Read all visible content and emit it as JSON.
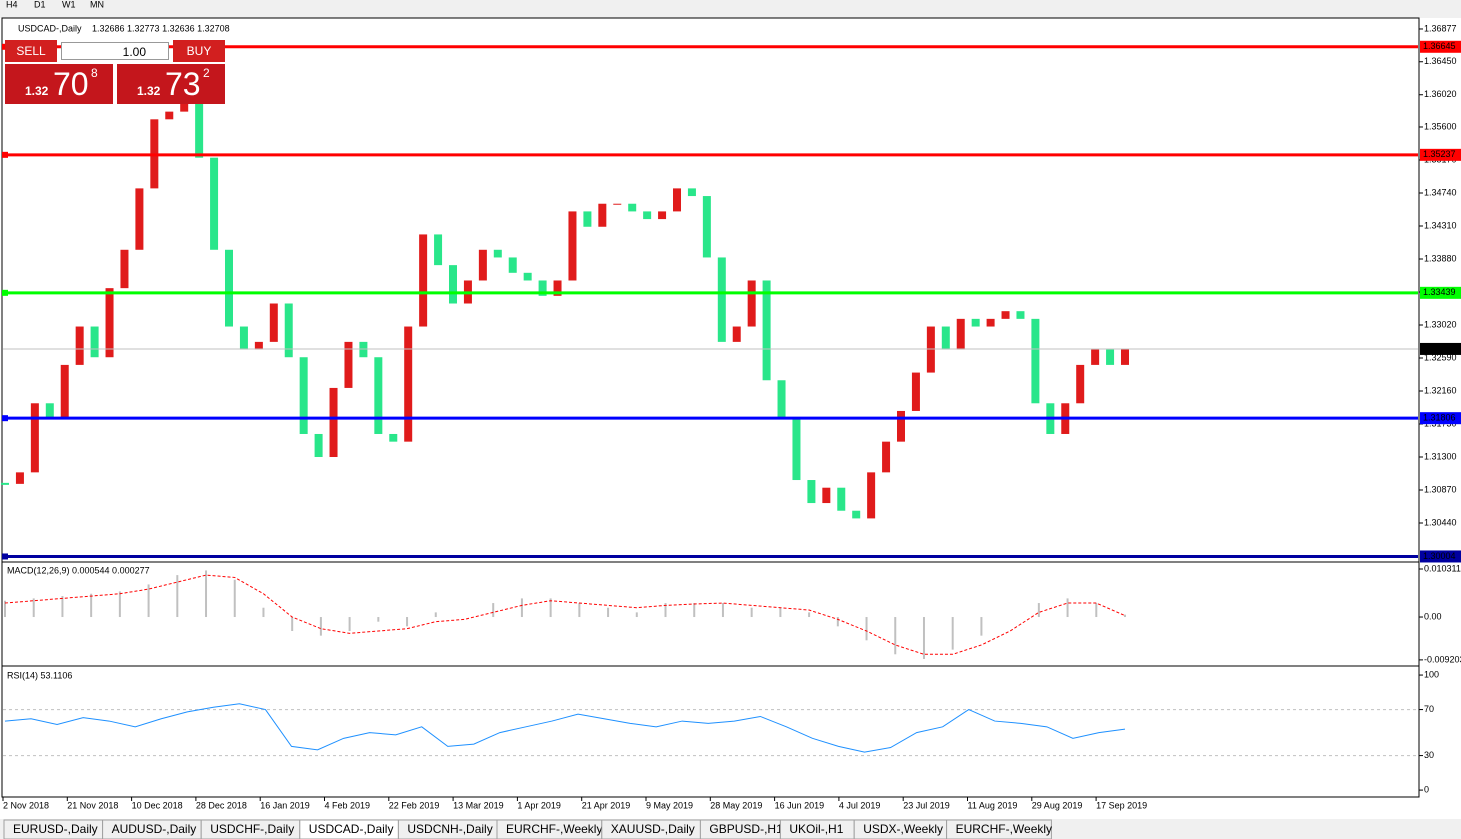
{
  "timeframes": [
    "H4",
    "D1",
    "W1",
    "MN"
  ],
  "trade_panel": {
    "sell": "SELL",
    "buy": "BUY",
    "lots": "1.00",
    "sell_price": {
      "big": "1.32",
      "main": "70",
      "sup": "8"
    },
    "buy_price": {
      "big": "1.32",
      "main": "73",
      "sup": "2"
    }
  },
  "chart_data": [
    {
      "type": "candlestick",
      "title": "USDCAD-,Daily",
      "ohlc_label": "1.32686 1.32773 1.32636 1.32708",
      "closes": [
        1.3095,
        1.311,
        1.32,
        1.318,
        1.325,
        1.33,
        1.326,
        1.335,
        1.34,
        1.348,
        1.357,
        1.358,
        1.36,
        1.352,
        1.34,
        1.33,
        1.327,
        1.328,
        1.333,
        1.326,
        1.316,
        1.313,
        1.322,
        1.328,
        1.326,
        1.316,
        1.315,
        1.33,
        1.342,
        1.338,
        1.333,
        1.336,
        1.34,
        1.339,
        1.337,
        1.336,
        1.334,
        1.336,
        1.345,
        1.343,
        1.346,
        1.346,
        1.345,
        1.344,
        1.345,
        1.348,
        1.347,
        1.339,
        1.328,
        1.33,
        1.336,
        1.323,
        1.318,
        1.31,
        1.307,
        1.309,
        1.306,
        1.305,
        1.311,
        1.315,
        1.319,
        1.324,
        1.33,
        1.327,
        1.331,
        1.33,
        1.331,
        1.332,
        1.331,
        1.32,
        1.316,
        1.32,
        1.325,
        1.327,
        1.325,
        1.32708
      ],
      "ylim": [
        1.29945,
        1.3702
      ],
      "yticks": [
        1.36877,
        {
          "value": 1.3645,
          "label": "1.36450"
        },
        {
          "value": 1.3602,
          "label": "1.36020"
        },
        {
          "value": 1.356,
          "label": "1.35600"
        },
        {
          "value": 1.3517,
          "label": "1.35170"
        },
        {
          "value": 1.3474,
          "label": "1.34740"
        },
        {
          "value": 1.3431,
          "label": "1.34310"
        },
        {
          "value": 1.3388,
          "label": "1.33880"
        },
        {
          "value": 1.3345,
          "label": "1.33450"
        },
        {
          "value": 1.3302,
          "label": "1.33020"
        },
        {
          "value": 1.3259,
          "label": "1.32590"
        },
        {
          "value": 1.3216,
          "label": "1.32160"
        },
        {
          "value": 1.3173,
          "label": "1.31730"
        },
        {
          "value": 1.313,
          "label": "1.31300"
        },
        {
          "value": 1.3087,
          "label": "1.30870"
        },
        {
          "value": 1.3044,
          "label": "1.30440"
        }
      ],
      "levels": [
        {
          "value": 1.36645,
          "color": "#ff0000"
        },
        {
          "value": 1.35237,
          "color": "#ff0000"
        },
        {
          "value": 1.33439,
          "color": "#00ff00"
        },
        {
          "value": 1.31806,
          "color": "#0000ff"
        },
        {
          "value": 1.30004,
          "color": "#0000a0"
        }
      ],
      "current_price": 1.32708,
      "x_labels": [
        "2 Nov 2018",
        "21 Nov 2018",
        "10 Dec 2018",
        "28 Dec 2018",
        "16 Jan 2019",
        "4 Feb 2019",
        "22 Feb 2019",
        "13 Mar 2019",
        "1 Apr 2019",
        "21 Apr 2019",
        "9 May 2019",
        "28 May 2019",
        "16 Jun 2019",
        "4 Jul 2019",
        "23 Jul 2019",
        "11 Aug 2019",
        "29 Aug 2019",
        "17 Sep 2019"
      ]
    },
    {
      "type": "macd",
      "title": "MACD(12,26,9) 0.000544 0.000277",
      "series": [
        {
          "name": "MACD",
          "color": "#c0c0c0",
          "values": [
            0.0035,
            0.004,
            0.0045,
            0.005,
            0.0055,
            0.007,
            0.009,
            0.01,
            0.008,
            0.002,
            -0.003,
            -0.004,
            -0.003,
            -0.001,
            -0.002,
            0.001,
            0,
            0.003,
            0.004,
            0.004,
            0.003,
            0.002,
            0.001,
            0.003,
            0.003,
            0.003,
            0.002,
            0.002,
            0.001,
            -0.002,
            -0.005,
            -0.008,
            -0.009,
            -0.007,
            -0.004,
            0,
            0.003,
            0.004,
            0.003,
            0.0005
          ]
        },
        {
          "name": "Signal",
          "color": "#ff0000",
          "values": [
            0.003,
            0.0035,
            0.004,
            0.0045,
            0.005,
            0.006,
            0.0075,
            0.009,
            0.0085,
            0.005,
            0,
            -0.0025,
            -0.0035,
            -0.003,
            -0.0025,
            -0.001,
            -0.0005,
            0.001,
            0.0025,
            0.0035,
            0.003,
            0.0025,
            0.002,
            0.0025,
            0.0028,
            0.003,
            0.0025,
            0.002,
            0.0015,
            -0.0005,
            -0.003,
            -0.006,
            -0.008,
            -0.008,
            -0.006,
            -0.003,
            0.001,
            0.003,
            0.003,
            0.0003
          ]
        }
      ],
      "ylim": [
        -0.0103,
        0.0116
      ],
      "yticks": [
        0.010311,
        {
          "value": 0,
          "label": "0.00"
        },
        -0.009203
      ]
    },
    {
      "type": "rsi",
      "title": "RSI(14) 53.1106",
      "color": "#1e90ff",
      "values": [
        60,
        62,
        57,
        63,
        60,
        55,
        62,
        68,
        72,
        75,
        70,
        38,
        35,
        45,
        50,
        48,
        55,
        38,
        40,
        50,
        55,
        60,
        66,
        62,
        58,
        55,
        60,
        58,
        60,
        64,
        55,
        45,
        38,
        33,
        37,
        50,
        55,
        70,
        60,
        58,
        55,
        45,
        50,
        53
      ],
      "ylim": [
        -6,
        107
      ],
      "yticks": [
        100,
        70,
        30,
        0
      ],
      "levels": [
        70,
        30
      ]
    }
  ],
  "symbol_tabs": {
    "items": [
      "EURUSD-,Daily",
      "AUDUSD-,Daily",
      "USDCHF-,Daily",
      "USDCAD-,Daily",
      "USDCNH-,Daily",
      "EURCHF-,Weekly",
      "XAUUSD-,Daily",
      "GBPUSD-,H1",
      "UKOil-,H1",
      "USDX-,Weekly",
      "EURCHF-,Weekly"
    ],
    "active": 3
  }
}
